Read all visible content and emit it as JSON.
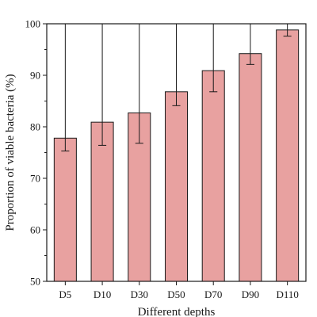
{
  "chart_data": {
    "type": "bar",
    "categories": [
      "D5",
      "D10",
      "D30",
      "D50",
      "D70",
      "D90",
      "D110"
    ],
    "values": [
      77.8,
      80.9,
      82.7,
      86.8,
      90.9,
      94.2,
      98.8
    ],
    "error": [
      2.5,
      4.5,
      5.9,
      2.7,
      4.1,
      2.1,
      1.2
    ],
    "xlabel": "Different depths",
    "ylabel": "Proportion of viable bacteria (%)",
    "ylim": [
      50,
      100
    ],
    "yticks": [
      50,
      60,
      70,
      80,
      90,
      100
    ],
    "bar_color": "#e8a1a0",
    "bar_edge_color": "#1a1a1a",
    "grid": false
  }
}
